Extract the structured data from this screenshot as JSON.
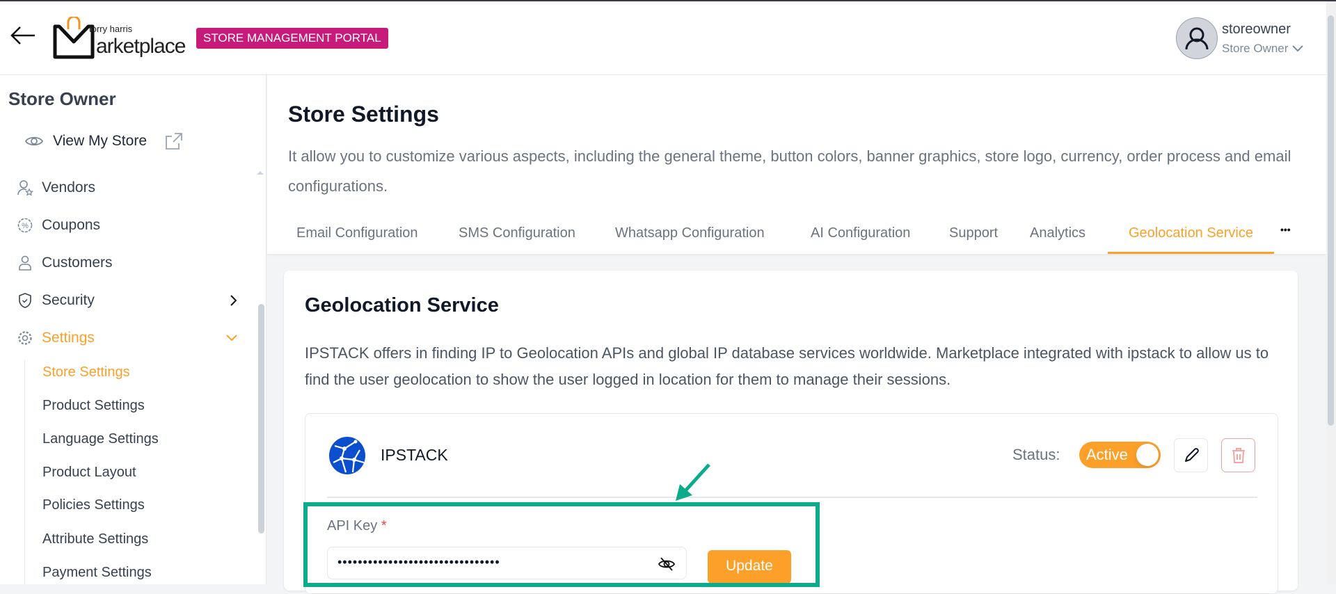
{
  "header": {
    "logo_text_top": "torry harris",
    "logo_text_main": "Marketplace",
    "portal_badge": "STORE MANAGEMENT PORTAL",
    "user": {
      "name": "storeowner",
      "role": "Store Owner"
    }
  },
  "sidebar": {
    "title": "Store Owner",
    "view_store": "View My Store",
    "items": [
      {
        "label": "Vendors",
        "icon": "vendor-icon"
      },
      {
        "label": "Coupons",
        "icon": "coupon-icon"
      },
      {
        "label": "Customers",
        "icon": "user-icon"
      },
      {
        "label": "Security",
        "icon": "shield-icon"
      },
      {
        "label": "Settings",
        "icon": "gear-icon",
        "active": true
      }
    ],
    "sub_items": [
      "Store Settings",
      "Product Settings",
      "Language Settings",
      "Product Layout",
      "Policies Settings",
      "Attribute Settings",
      "Payment Settings"
    ]
  },
  "page": {
    "title": "Store Settings",
    "description": "It allow you to customize various aspects, including the general theme, button colors, banner graphics, store logo, currency, order process and email configurations.",
    "tabs": [
      "Email Configuration",
      "SMS Configuration",
      "Whatsapp Configuration",
      "AI Configuration",
      "Support",
      "Analytics",
      "Geolocation Service"
    ],
    "active_tab": "Geolocation Service",
    "more": "•••"
  },
  "card": {
    "title": "Geolocation Service",
    "description": "IPSTACK offers in finding IP to Geolocation APIs and global IP database services worldwide. Marketplace integrated with ipstack to allow us to find the user geolocation to show the user logged in location for them to manage their sessions.",
    "provider": "IPSTACK",
    "status_label": "Status:",
    "status_value": "Active",
    "api_key_label": "API Key",
    "required": "*",
    "api_key_value": "••••••••••••••••••••••••••••••••",
    "update_label": "Update"
  },
  "colors": {
    "accent": "#fca02a",
    "badge": "#c71b7c",
    "highlight": "#0bab8b",
    "link_blue": "#0b4fcf"
  }
}
